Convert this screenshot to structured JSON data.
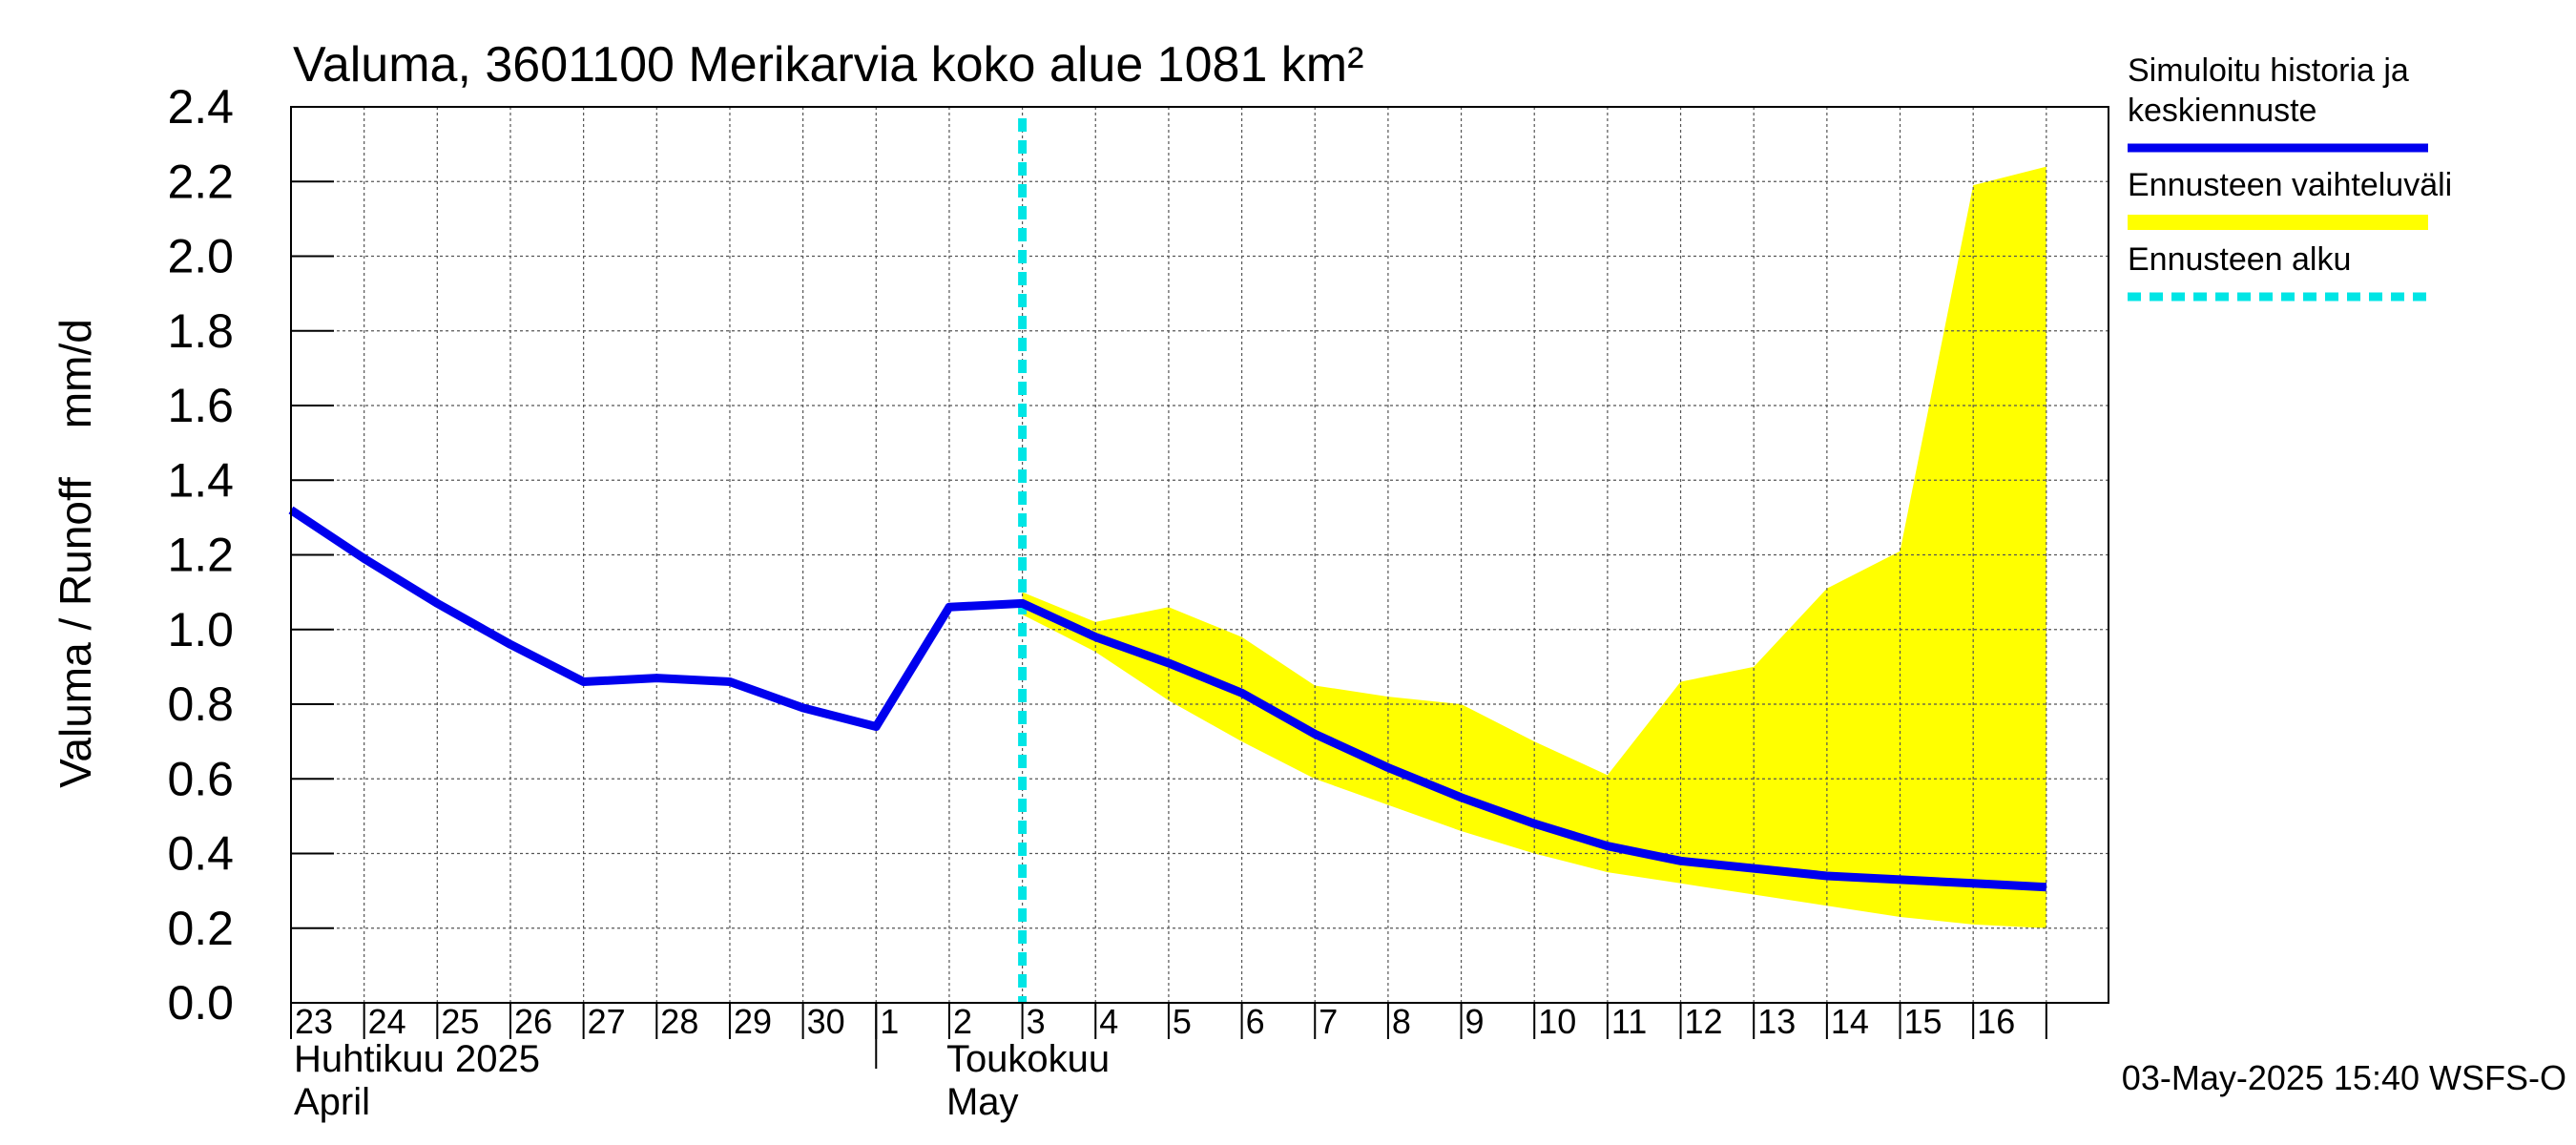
{
  "chart_data": {
    "type": "line",
    "title": "Valuma, 3601100 Merikarvia koko alue 1081 km²",
    "ylabel": "Valuma / Runoff    mm/d",
    "ylim": [
      0,
      2.4
    ],
    "yticks": [
      0.0,
      0.2,
      0.4,
      0.6,
      0.8,
      1.0,
      1.2,
      1.4,
      1.6,
      1.8,
      2.0,
      2.2,
      2.4
    ],
    "ytick_labels": [
      "0.0",
      "0.2",
      "0.4",
      "0.6",
      "0.8",
      "1.0",
      "1.2",
      "1.4",
      "1.6",
      "1.8",
      "2.0",
      "2.2",
      "2.4"
    ],
    "x_day_labels": [
      "23",
      "24",
      "25",
      "26",
      "27",
      "28",
      "29",
      "30",
      "1",
      "2",
      "3",
      "4",
      "5",
      "6",
      "7",
      "8",
      "9",
      "10",
      "11",
      "12",
      "13",
      "14",
      "15",
      "16"
    ],
    "x_dates": [
      "2025-04-23",
      "2025-04-24",
      "2025-04-25",
      "2025-04-26",
      "2025-04-27",
      "2025-04-28",
      "2025-04-29",
      "2025-04-30",
      "2025-05-01",
      "2025-05-02",
      "2025-05-03",
      "2025-05-04",
      "2025-05-05",
      "2025-05-06",
      "2025-05-07",
      "2025-05-08",
      "2025-05-09",
      "2025-05-10",
      "2025-05-11",
      "2025-05-12",
      "2025-05-13",
      "2025-05-14",
      "2025-05-15",
      "2025-05-16",
      "2025-05-17"
    ],
    "month_labels": [
      {
        "fi": "Huhtikuu  2025",
        "en": "April"
      },
      {
        "fi": "Toukokuu",
        "en": "May"
      }
    ],
    "grid": true,
    "series": [
      {
        "name": "Simuloitu historia ja keskiennuste",
        "color": "#0000ee",
        "x": [
          "2025-04-23",
          "2025-04-24",
          "2025-04-25",
          "2025-04-26",
          "2025-04-27",
          "2025-04-28",
          "2025-04-29",
          "2025-04-30",
          "2025-05-01",
          "2025-05-02",
          "2025-05-03",
          "2025-05-04",
          "2025-05-05",
          "2025-05-06",
          "2025-05-07",
          "2025-05-08",
          "2025-05-09",
          "2025-05-10",
          "2025-05-11",
          "2025-05-12",
          "2025-05-13",
          "2025-05-14",
          "2025-05-15",
          "2025-05-16",
          "2025-05-17"
        ],
        "values": [
          1.32,
          1.19,
          1.07,
          0.96,
          0.86,
          0.87,
          0.86,
          0.79,
          0.74,
          1.06,
          1.07,
          0.98,
          0.91,
          0.83,
          0.72,
          0.63,
          0.55,
          0.48,
          0.42,
          0.38,
          0.36,
          0.34,
          0.33,
          0.32,
          0.31
        ]
      },
      {
        "name": "Ennusteen vaihteluväli",
        "type": "band",
        "color": "#ffff00",
        "x": [
          "2025-05-03",
          "2025-05-04",
          "2025-05-05",
          "2025-05-06",
          "2025-05-07",
          "2025-05-08",
          "2025-05-09",
          "2025-05-10",
          "2025-05-11",
          "2025-05-12",
          "2025-05-13",
          "2025-05-14",
          "2025-05-15",
          "2025-05-16",
          "2025-05-17"
        ],
        "upper": [
          1.1,
          1.02,
          1.06,
          0.98,
          0.85,
          0.82,
          0.8,
          0.7,
          0.61,
          0.86,
          0.9,
          1.11,
          1.21,
          2.19,
          2.24
        ],
        "lower": [
          1.04,
          0.94,
          0.81,
          0.7,
          0.6,
          0.53,
          0.46,
          0.4,
          0.35,
          0.32,
          0.29,
          0.26,
          0.23,
          0.21,
          0.2
        ]
      }
    ],
    "forecast_start": {
      "name": "Ennusteen alku",
      "x": "2025-05-03",
      "color": "#00e5e5"
    },
    "legend": {
      "position": "right",
      "entries": [
        {
          "label_lines": [
            "Simuloitu historia ja",
            "keskiennuste"
          ],
          "color": "#0000ee",
          "style": "solid"
        },
        {
          "label_lines": [
            "Ennusteen vaihteluväli"
          ],
          "color": "#ffff00",
          "style": "band"
        },
        {
          "label_lines": [
            "Ennusteen alku"
          ],
          "color": "#00e5e5",
          "style": "dashed"
        }
      ]
    },
    "footer_timestamp": "03-May-2025 15:40 WSFS-O"
  }
}
